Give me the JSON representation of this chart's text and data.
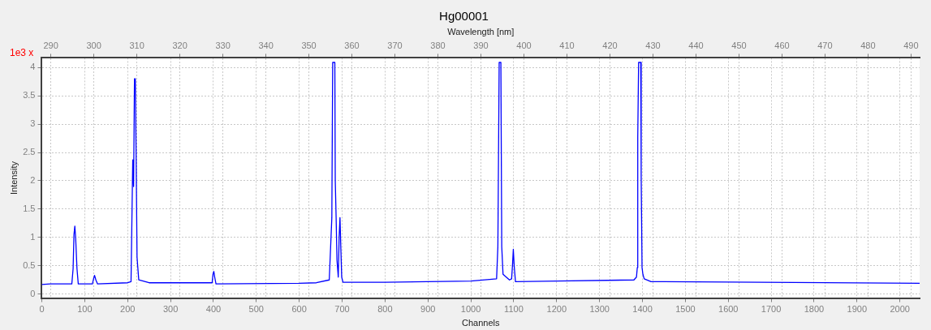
{
  "chart_data": {
    "type": "line",
    "title": "Hg00001",
    "xlabel": "Channels",
    "x2label": "Wavelength [nm]",
    "ylabel": "Intensity",
    "annotations": [
      "1e3 x"
    ],
    "xlim": [
      0,
      2046
    ],
    "xticks": [
      0,
      100,
      200,
      300,
      400,
      500,
      600,
      700,
      800,
      900,
      1000,
      1100,
      1200,
      1300,
      1400,
      1500,
      1600,
      1700,
      1800,
      1900,
      2000
    ],
    "x2lim": [
      287.9,
      492.0
    ],
    "x2ticks": [
      290,
      300,
      310,
      320,
      330,
      340,
      350,
      360,
      370,
      380,
      390,
      400,
      410,
      420,
      430,
      440,
      450,
      460,
      470,
      480,
      490
    ],
    "ylim": [
      -0.07,
      4.17
    ],
    "yticks": [
      0,
      0.5,
      1,
      1.5,
      2,
      2.5,
      3,
      3.5,
      4
    ],
    "grid": true,
    "legend": false,
    "marker": "none",
    "line_style": "solid",
    "series": [
      {
        "color": "#0000ff",
        "x": [
          0,
          20,
          70,
          73,
          75,
          77,
          79,
          82,
          85,
          118,
          121,
          123,
          126,
          130,
          200,
          208,
          210,
          212,
          214,
          216,
          218,
          220,
          222,
          226,
          250,
          397,
          399,
          401,
          403,
          406,
          600,
          640,
          670,
          676,
          678,
          680,
          683,
          684,
          686,
          688,
          690,
          691,
          693,
          695,
          697,
          699,
          702,
          800,
          1000,
          1060,
          1063,
          1066,
          1070,
          1072,
          1075,
          1090,
          1095,
          1097,
          1099,
          1101,
          1104,
          1200,
          1380,
          1386,
          1388,
          1389,
          1391,
          1396,
          1397,
          1399,
          1401,
          1404,
          1420,
          1450,
          2046
        ],
        "values": [
          0.17,
          0.18,
          0.18,
          0.45,
          1.05,
          1.2,
          0.98,
          0.45,
          0.18,
          0.18,
          0.28,
          0.33,
          0.25,
          0.18,
          0.2,
          0.22,
          1.3,
          2.37,
          1.9,
          3.8,
          3.8,
          2.37,
          0.65,
          0.25,
          0.2,
          0.2,
          0.35,
          0.4,
          0.3,
          0.18,
          0.19,
          0.2,
          0.25,
          1.35,
          4.09,
          4.09,
          4.09,
          2.0,
          1.35,
          0.6,
          0.4,
          0.3,
          1.0,
          1.35,
          0.8,
          0.3,
          0.21,
          0.21,
          0.23,
          0.27,
          0.84,
          4.09,
          4.09,
          0.84,
          0.35,
          0.25,
          0.27,
          0.5,
          0.79,
          0.5,
          0.22,
          0.23,
          0.25,
          0.3,
          0.47,
          2.77,
          4.09,
          4.09,
          2.07,
          0.47,
          0.35,
          0.27,
          0.22,
          0.22,
          0.19
        ]
      }
    ]
  }
}
